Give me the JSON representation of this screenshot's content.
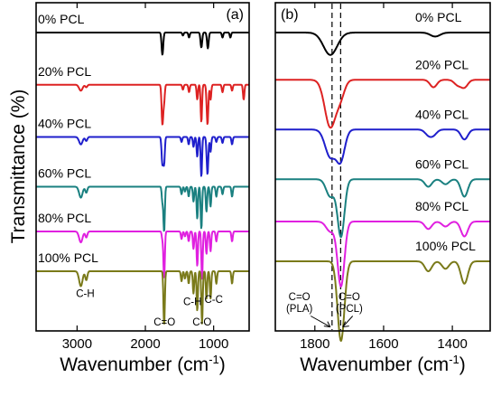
{
  "chart_data": [
    {
      "type": "line",
      "panel_label": "(a)",
      "xlabel": "Wavenumber (cm",
      "xlabel_sup": "-1",
      "xlabel_end": ")",
      "ylabel": "Transmittance (%)",
      "xlim": [
        3600,
        480
      ],
      "x_reversed": true,
      "xticks": [
        3000,
        2000,
        1000
      ],
      "ylim": [
        0,
        6.6
      ],
      "offset_stacked": true,
      "series": [
        {
          "name": "0% PCL",
          "color": "#000000",
          "baseline": 6.0,
          "bands": [
            {
              "x": 1750,
              "depth": 0.45,
              "width": 12
            },
            {
              "x": 1450,
              "depth": 0.06,
              "width": 10
            },
            {
              "x": 1360,
              "depth": 0.1,
              "width": 10
            },
            {
              "x": 1180,
              "depth": 0.3,
              "width": 12
            },
            {
              "x": 1085,
              "depth": 0.32,
              "width": 12
            },
            {
              "x": 870,
              "depth": 0.1,
              "width": 10
            },
            {
              "x": 755,
              "depth": 0.1,
              "width": 10
            }
          ]
        },
        {
          "name": "20% PCL",
          "color": "#dd2222",
          "baseline": 4.95,
          "bands": [
            {
              "x": 2945,
              "depth": 0.12,
              "width": 25
            },
            {
              "x": 2865,
              "depth": 0.05,
              "width": 15
            },
            {
              "x": 1750,
              "depth": 0.8,
              "width": 12
            },
            {
              "x": 1725,
              "depth": 0.3,
              "width": 10
            },
            {
              "x": 1450,
              "depth": 0.1,
              "width": 10
            },
            {
              "x": 1360,
              "depth": 0.15,
              "width": 10
            },
            {
              "x": 1240,
              "depth": 0.3,
              "width": 10
            },
            {
              "x": 1180,
              "depth": 0.75,
              "width": 10
            },
            {
              "x": 1090,
              "depth": 0.8,
              "width": 12
            },
            {
              "x": 1045,
              "depth": 0.3,
              "width": 10
            },
            {
              "x": 870,
              "depth": 0.15,
              "width": 10
            },
            {
              "x": 730,
              "depth": 0.12,
              "width": 10
            },
            {
              "x": 560,
              "depth": 0.3,
              "width": 10
            }
          ]
        },
        {
          "name": "40% PCL",
          "color": "#1f1fcc",
          "baseline": 3.9,
          "bands": [
            {
              "x": 2945,
              "depth": 0.15,
              "width": 25
            },
            {
              "x": 2865,
              "depth": 0.08,
              "width": 15
            },
            {
              "x": 1750,
              "depth": 0.55,
              "width": 12
            },
            {
              "x": 1725,
              "depth": 0.5,
              "width": 10
            },
            {
              "x": 1470,
              "depth": 0.1,
              "width": 10
            },
            {
              "x": 1365,
              "depth": 0.15,
              "width": 10
            },
            {
              "x": 1295,
              "depth": 0.2,
              "width": 10
            },
            {
              "x": 1240,
              "depth": 0.4,
              "width": 10
            },
            {
              "x": 1180,
              "depth": 0.8,
              "width": 10
            },
            {
              "x": 1090,
              "depth": 0.75,
              "width": 12
            },
            {
              "x": 1045,
              "depth": 0.3,
              "width": 10
            },
            {
              "x": 960,
              "depth": 0.1,
              "width": 10
            },
            {
              "x": 870,
              "depth": 0.12,
              "width": 10
            },
            {
              "x": 730,
              "depth": 0.15,
              "width": 10
            }
          ]
        },
        {
          "name": "60% PCL",
          "color": "#1a8080",
          "baseline": 2.9,
          "bands": [
            {
              "x": 2945,
              "depth": 0.22,
              "width": 25
            },
            {
              "x": 2865,
              "depth": 0.12,
              "width": 15
            },
            {
              "x": 1750,
              "depth": 0.3,
              "width": 10
            },
            {
              "x": 1725,
              "depth": 0.9,
              "width": 10
            },
            {
              "x": 1470,
              "depth": 0.15,
              "width": 10
            },
            {
              "x": 1420,
              "depth": 0.1,
              "width": 10
            },
            {
              "x": 1365,
              "depth": 0.2,
              "width": 10
            },
            {
              "x": 1295,
              "depth": 0.3,
              "width": 10
            },
            {
              "x": 1240,
              "depth": 0.65,
              "width": 10
            },
            {
              "x": 1180,
              "depth": 0.85,
              "width": 10
            },
            {
              "x": 1105,
              "depth": 0.5,
              "width": 10
            },
            {
              "x": 1045,
              "depth": 0.4,
              "width": 10
            },
            {
              "x": 960,
              "depth": 0.2,
              "width": 10
            },
            {
              "x": 870,
              "depth": 0.15,
              "width": 10
            },
            {
              "x": 730,
              "depth": 0.2,
              "width": 10
            }
          ]
        },
        {
          "name": "80% PCL",
          "color": "#e020e0",
          "baseline": 2.0,
          "bands": [
            {
              "x": 2945,
              "depth": 0.22,
              "width": 25
            },
            {
              "x": 2865,
              "depth": 0.12,
              "width": 15
            },
            {
              "x": 1750,
              "depth": 0.15,
              "width": 10
            },
            {
              "x": 1725,
              "depth": 0.95,
              "width": 10
            },
            {
              "x": 1470,
              "depth": 0.15,
              "width": 10
            },
            {
              "x": 1420,
              "depth": 0.1,
              "width": 10
            },
            {
              "x": 1365,
              "depth": 0.2,
              "width": 10
            },
            {
              "x": 1295,
              "depth": 0.35,
              "width": 10
            },
            {
              "x": 1240,
              "depth": 0.7,
              "width": 10
            },
            {
              "x": 1170,
              "depth": 0.95,
              "width": 10
            },
            {
              "x": 1105,
              "depth": 0.45,
              "width": 10
            },
            {
              "x": 1045,
              "depth": 0.4,
              "width": 10
            },
            {
              "x": 960,
              "depth": 0.2,
              "width": 10
            },
            {
              "x": 730,
              "depth": 0.2,
              "width": 10
            }
          ]
        },
        {
          "name": "100% PCL",
          "color": "#7a7a1a",
          "baseline": 1.2,
          "bands": [
            {
              "x": 2945,
              "depth": 0.3,
              "width": 25
            },
            {
              "x": 2865,
              "depth": 0.18,
              "width": 15
            },
            {
              "x": 1725,
              "depth": 1.1,
              "width": 10
            },
            {
              "x": 1470,
              "depth": 0.2,
              "width": 10
            },
            {
              "x": 1420,
              "depth": 0.15,
              "width": 10
            },
            {
              "x": 1365,
              "depth": 0.25,
              "width": 10
            },
            {
              "x": 1295,
              "depth": 0.45,
              "width": 10
            },
            {
              "x": 1240,
              "depth": 0.8,
              "width": 10
            },
            {
              "x": 1170,
              "depth": 1.05,
              "width": 10
            },
            {
              "x": 1105,
              "depth": 0.55,
              "width": 10
            },
            {
              "x": 1045,
              "depth": 0.55,
              "width": 10
            },
            {
              "x": 960,
              "depth": 0.25,
              "width": 10
            },
            {
              "x": 730,
              "depth": 0.25,
              "width": 10
            }
          ]
        }
      ],
      "annotations": [
        {
          "text": "C-H",
          "x": 2880,
          "y": 0.68
        },
        {
          "text": "C=O",
          "x": 1720,
          "y": 0.11
        },
        {
          "text": "C-H",
          "x": 1310,
          "y": 0.52
        },
        {
          "text": "C-C",
          "x": 1000,
          "y": 0.56
        },
        {
          "text": "C-O",
          "x": 1170,
          "y": 0.11
        }
      ]
    },
    {
      "type": "line",
      "panel_label": "(b)",
      "xlabel": "Wavenumber (cm",
      "xlabel_sup": "-1",
      "xlabel_end": ")",
      "xlim": [
        1915,
        1290
      ],
      "x_reversed": true,
      "xticks": [
        1800,
        1600,
        1400
      ],
      "ylim": [
        0,
        6.6
      ],
      "offset_stacked": true,
      "reference_lines_x": [
        1750,
        1725
      ],
      "series": [
        {
          "name": "0% PCL",
          "color": "#000000",
          "baseline": 6.0,
          "bands": [
            {
              "x": 1755,
              "depth": 0.45,
              "width": 20
            },
            {
              "x": 1450,
              "depth": 0.08,
              "width": 14
            }
          ]
        },
        {
          "name": "20% PCL",
          "color": "#dd2222",
          "baseline": 5.05,
          "bands": [
            {
              "x": 1755,
              "depth": 0.95,
              "width": 16
            },
            {
              "x": 1725,
              "depth": 0.3,
              "width": 12
            },
            {
              "x": 1455,
              "depth": 0.15,
              "width": 10
            },
            {
              "x": 1385,
              "depth": 0.1,
              "width": 10
            },
            {
              "x": 1365,
              "depth": 0.15,
              "width": 10
            }
          ]
        },
        {
          "name": "40% PCL",
          "color": "#1f1fcc",
          "baseline": 4.05,
          "bands": [
            {
              "x": 1755,
              "depth": 0.55,
              "width": 15
            },
            {
              "x": 1725,
              "depth": 0.6,
              "width": 12
            },
            {
              "x": 1470,
              "depth": 0.1,
              "width": 10
            },
            {
              "x": 1455,
              "depth": 0.1,
              "width": 10
            },
            {
              "x": 1365,
              "depth": 0.2,
              "width": 10
            }
          ]
        },
        {
          "name": "60% PCL",
          "color": "#1a8080",
          "baseline": 3.05,
          "bands": [
            {
              "x": 1755,
              "depth": 0.35,
              "width": 12
            },
            {
              "x": 1724,
              "depth": 1.15,
              "width": 10
            },
            {
              "x": 1470,
              "depth": 0.15,
              "width": 10
            },
            {
              "x": 1420,
              "depth": 0.1,
              "width": 10
            },
            {
              "x": 1365,
              "depth": 0.35,
              "width": 10
            }
          ]
        },
        {
          "name": "80% PCL",
          "color": "#e020e0",
          "baseline": 2.2,
          "bands": [
            {
              "x": 1755,
              "depth": 0.2,
              "width": 12
            },
            {
              "x": 1724,
              "depth": 1.3,
              "width": 10
            },
            {
              "x": 1470,
              "depth": 0.15,
              "width": 10
            },
            {
              "x": 1420,
              "depth": 0.1,
              "width": 10
            },
            {
              "x": 1365,
              "depth": 0.3,
              "width": 10
            }
          ]
        },
        {
          "name": "100% PCL",
          "color": "#7a7a1a",
          "baseline": 1.4,
          "bands": [
            {
              "x": 1724,
              "depth": 1.6,
              "width": 10
            },
            {
              "x": 1470,
              "depth": 0.2,
              "width": 10
            },
            {
              "x": 1420,
              "depth": 0.15,
              "width": 10
            },
            {
              "x": 1365,
              "depth": 0.45,
              "width": 10
            }
          ]
        }
      ],
      "annotations": [
        {
          "text": "C=O",
          "x": 1845,
          "y": 0.62
        },
        {
          "text": "(PLA)",
          "x": 1845,
          "y": 0.38
        },
        {
          "text": "C=O",
          "x": 1700,
          "y": 0.62
        },
        {
          "text": "(PCL)",
          "x": 1700,
          "y": 0.38
        }
      ]
    }
  ]
}
